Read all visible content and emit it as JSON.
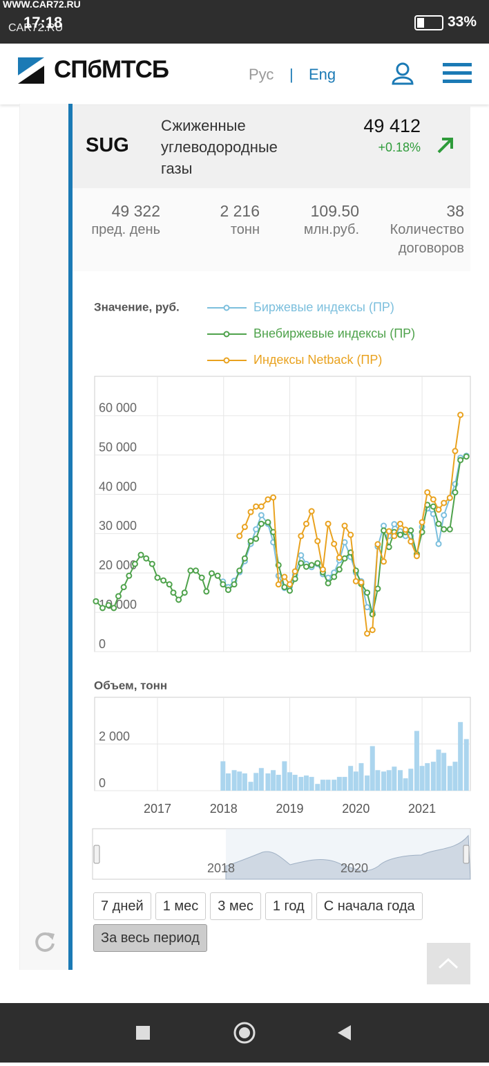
{
  "status_bar": {
    "watermark": "WWW.CAR72.RU",
    "time": "17:18",
    "watermark_small": "CAR72.RU",
    "battery": "33%"
  },
  "header": {
    "logo": "СПбМТСБ",
    "lang_ru": "Рус",
    "separator": "|",
    "lang_en": "Eng"
  },
  "product": {
    "code": "SUG",
    "name": "Сжиженные углеводородные газы",
    "price": "49 412",
    "change": "+0.18%"
  },
  "stats": [
    {
      "value": "49 322",
      "label": "пред. день"
    },
    {
      "value": "2 216",
      "label": "тонн"
    },
    {
      "value": "109.50",
      "label": "млн.руб."
    },
    {
      "value": "38",
      "label": "Количество договоров"
    }
  ],
  "chart_data": [
    {
      "type": "line",
      "title": "Значение, руб.",
      "x": [
        2016.07,
        2016.17,
        2016.26,
        2016.34,
        2016.41,
        2016.49,
        2016.57,
        2016.66,
        2016.75,
        2016.83,
        2016.92,
        2017.0,
        2017.09,
        2017.18,
        2017.24,
        2017.32,
        2017.41,
        2017.5,
        2017.58,
        2017.67,
        2017.74,
        2017.82,
        2017.91,
        2017.99,
        2018.07,
        2018.16,
        2018.24,
        2018.32,
        2018.41,
        2018.49,
        2018.57,
        2018.67,
        2018.75,
        2018.83,
        2018.92,
        2019.0,
        2019.08,
        2019.17,
        2019.25,
        2019.33,
        2019.42,
        2019.5,
        2019.58,
        2019.67,
        2019.75,
        2019.83,
        2019.92,
        2020.0,
        2020.08,
        2020.17,
        2020.25,
        2020.33,
        2020.42,
        2020.5,
        2020.58,
        2020.67,
        2020.75,
        2020.83,
        2020.92,
        2021.0,
        2021.08,
        2021.17,
        2021.25,
        2021.33,
        2021.42,
        2021.5,
        2021.58,
        2021.67
      ],
      "series": [
        {
          "name": "Биржевые индексы (ПР)",
          "color": "#7cbfdd",
          "values": [
            null,
            null,
            null,
            null,
            null,
            null,
            null,
            null,
            null,
            null,
            null,
            null,
            null,
            null,
            null,
            null,
            null,
            null,
            null,
            null,
            null,
            null,
            null,
            17800,
            16400,
            18000,
            20200,
            23000,
            27400,
            31100,
            34700,
            32500,
            27800,
            19300,
            16200,
            16500,
            19500,
            24500,
            22300,
            21500,
            22300,
            19700,
            18800,
            20100,
            23200,
            27800,
            24100,
            20100,
            17900,
            11300,
            10000,
            26700,
            32000,
            29400,
            32400,
            30600,
            29400,
            29400,
            24500,
            31700,
            36400,
            35000,
            27400,
            34700,
            39100,
            42600,
            49300,
            49800
          ]
        },
        {
          "name": "Внебиржевые индексы (ПР)",
          "color": "#4ea24b",
          "values": [
            12800,
            11100,
            11800,
            11100,
            14100,
            16400,
            19300,
            22300,
            24600,
            23700,
            22300,
            18800,
            18100,
            17100,
            15000,
            13200,
            15000,
            20600,
            20600,
            18800,
            15300,
            19900,
            19300,
            17100,
            15700,
            17100,
            20600,
            23700,
            28100,
            28700,
            32500,
            32900,
            30400,
            22000,
            16400,
            15500,
            18500,
            22500,
            21600,
            22000,
            22500,
            20200,
            17400,
            19000,
            20900,
            23700,
            25200,
            20600,
            17200,
            15000,
            9500,
            16000,
            30800,
            26600,
            30400,
            29700,
            30400,
            30800,
            24800,
            30400,
            37300,
            36900,
            32500,
            31100,
            31100,
            40500,
            48700,
            49600
          ]
        },
        {
          "name": "Индексы Netback (ПР)",
          "color": "#e9a21f",
          "values": [
            null,
            null,
            null,
            null,
            null,
            null,
            null,
            null,
            null,
            null,
            null,
            null,
            null,
            null,
            null,
            null,
            null,
            null,
            null,
            null,
            null,
            null,
            null,
            null,
            null,
            null,
            29400,
            31700,
            35500,
            36900,
            36900,
            38700,
            39200,
            17100,
            19000,
            17100,
            20400,
            29400,
            32500,
            35700,
            28100,
            20900,
            32500,
            27400,
            23900,
            32000,
            29700,
            17900,
            17600,
            4600,
            5500,
            27300,
            22900,
            30600,
            29400,
            32500,
            31000,
            28000,
            24300,
            32900,
            40500,
            38700,
            36100,
            37800,
            39100,
            51000,
            60200,
            null
          ]
        }
      ],
      "xlim": [
        2016.05,
        2021.73
      ],
      "xticks": [
        2017,
        2018,
        2019,
        2020,
        2021
      ],
      "ylim": [
        0,
        70000
      ],
      "yticks": [
        0,
        {
          "value": 10000,
          "label": "10 000"
        },
        {
          "value": 20000,
          "label": "20 000"
        },
        {
          "value": 30000,
          "label": "30 000"
        },
        {
          "value": 40000,
          "label": "40 000"
        },
        {
          "value": 50000,
          "label": "50 000"
        },
        {
          "value": 60000,
          "label": "60 000"
        }
      ],
      "grid": true
    },
    {
      "type": "bar",
      "title": "Объем, тонн",
      "color": "#abd5ee",
      "x": [
        2017.99,
        2018.07,
        2018.16,
        2018.24,
        2018.32,
        2018.41,
        2018.49,
        2018.57,
        2018.67,
        2018.75,
        2018.83,
        2018.92,
        2019.0,
        2019.08,
        2019.17,
        2019.25,
        2019.33,
        2019.42,
        2019.5,
        2019.58,
        2019.67,
        2019.75,
        2019.83,
        2019.92,
        2020.0,
        2020.08,
        2020.17,
        2020.25,
        2020.33,
        2020.42,
        2020.5,
        2020.58,
        2020.67,
        2020.75,
        2020.83,
        2020.92,
        2021.0,
        2021.08,
        2021.17,
        2021.25,
        2021.33,
        2021.42,
        2021.5,
        2021.58,
        2021.67
      ],
      "values": [
        1260,
        740,
        880,
        820,
        740,
        380,
        760,
        970,
        740,
        880,
        680,
        1260,
        790,
        680,
        590,
        650,
        590,
        290,
        470,
        470,
        470,
        590,
        590,
        1060,
        820,
        1180,
        650,
        1910,
        880,
        820,
        880,
        1030,
        880,
        530,
        940,
        2560,
        1060,
        1180,
        1240,
        1760,
        1620,
        1060,
        1240,
        2940,
        2210
      ],
      "xlim": [
        2016.05,
        2021.73
      ],
      "xticks": [
        2017,
        2018,
        2019,
        2020,
        2021
      ],
      "ylim": [
        0,
        4000
      ],
      "yticks": [
        0,
        {
          "value": 2000,
          "label": "2 000"
        }
      ],
      "grid": true
    }
  ],
  "navigator": {
    "labels": [
      "2018",
      "2020"
    ]
  },
  "buttons": [
    "7 дней",
    "1 мес",
    "3 мес",
    "1 год",
    "С начала года",
    "За весь период"
  ]
}
